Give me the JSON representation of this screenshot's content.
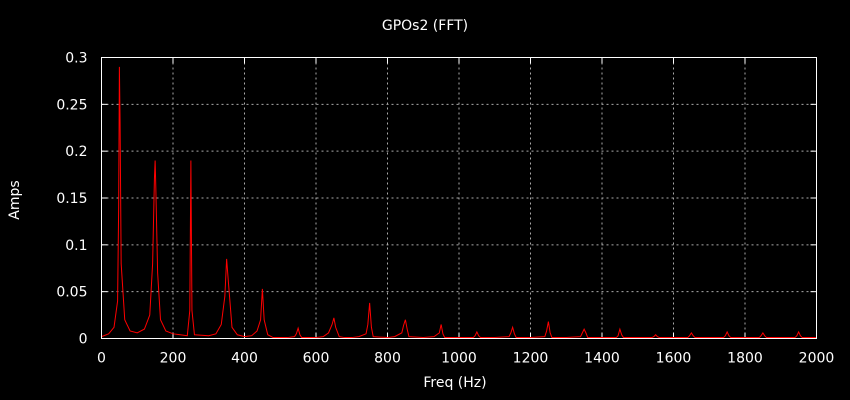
{
  "chart_data": {
    "type": "line",
    "title": "GPOs2 (FFT)",
    "xlabel": "Freq (Hz)",
    "ylabel": "Amps",
    "xlim": [
      0,
      2000
    ],
    "ylim": [
      0,
      0.3
    ],
    "xticks": [
      "0",
      "200",
      "400",
      "600",
      "800",
      "1000",
      "1200",
      "1400",
      "1600",
      "1800",
      "2000"
    ],
    "yticks": [
      "0",
      "0.05",
      "0.1",
      "0.15",
      "0.2",
      "0.25",
      "0.3"
    ],
    "grid": true,
    "series": [
      {
        "color": "#ff0000",
        "x": [
          0,
          20,
          35,
          45,
          48,
          50,
          52,
          55,
          65,
          80,
          100,
          120,
          135,
          143,
          148,
          150,
          152,
          157,
          165,
          180,
          200,
          220,
          240,
          247,
          250,
          253,
          260,
          300,
          320,
          335,
          345,
          350,
          355,
          365,
          380,
          400,
          420,
          435,
          445,
          450,
          455,
          465,
          480,
          500,
          520,
          540,
          545,
          550,
          555,
          560,
          600,
          620,
          635,
          645,
          650,
          655,
          665,
          680,
          700,
          720,
          740,
          745,
          750,
          755,
          760,
          800,
          820,
          840,
          845,
          850,
          855,
          860,
          900,
          930,
          945,
          950,
          955,
          960,
          1000,
          1040,
          1045,
          1050,
          1055,
          1060,
          1100,
          1140,
          1145,
          1150,
          1155,
          1160,
          1200,
          1240,
          1245,
          1250,
          1255,
          1260,
          1300,
          1340,
          1345,
          1350,
          1355,
          1360,
          1400,
          1440,
          1445,
          1450,
          1455,
          1460,
          1500,
          1540,
          1545,
          1550,
          1555,
          1560,
          1600,
          1640,
          1645,
          1650,
          1655,
          1660,
          1700,
          1740,
          1745,
          1750,
          1755,
          1760,
          1800,
          1840,
          1845,
          1850,
          1855,
          1860,
          1900,
          1940,
          1945,
          1950,
          1955,
          1960,
          2000
        ],
        "y": [
          0.002,
          0.005,
          0.012,
          0.04,
          0.14,
          0.29,
          0.23,
          0.08,
          0.02,
          0.008,
          0.006,
          0.01,
          0.025,
          0.08,
          0.17,
          0.19,
          0.16,
          0.07,
          0.02,
          0.008,
          0.005,
          0.004,
          0.003,
          0.03,
          0.19,
          0.03,
          0.004,
          0.003,
          0.005,
          0.015,
          0.045,
          0.085,
          0.06,
          0.012,
          0.004,
          0.002,
          0.003,
          0.008,
          0.02,
          0.053,
          0.02,
          0.004,
          0.001,
          0.001,
          0.001,
          0.002,
          0.005,
          0.011,
          0.004,
          0.001,
          0.001,
          0.002,
          0.006,
          0.015,
          0.022,
          0.012,
          0.002,
          0.001,
          0.001,
          0.002,
          0.005,
          0.015,
          0.038,
          0.012,
          0.002,
          0.001,
          0.002,
          0.006,
          0.014,
          0.02,
          0.01,
          0.002,
          0.001,
          0.002,
          0.006,
          0.015,
          0.005,
          0.001,
          0.001,
          0.001,
          0.003,
          0.007,
          0.003,
          0.001,
          0.001,
          0.002,
          0.006,
          0.012,
          0.005,
          0.001,
          0.001,
          0.002,
          0.008,
          0.018,
          0.006,
          0.001,
          0.001,
          0.002,
          0.006,
          0.01,
          0.006,
          0.001,
          0.001,
          0.001,
          0.003,
          0.01,
          0.004,
          0.001,
          0.001,
          0.001,
          0.002,
          0.004,
          0.002,
          0.001,
          0.001,
          0.001,
          0.003,
          0.006,
          0.003,
          0.001,
          0.001,
          0.001,
          0.003,
          0.007,
          0.003,
          0.001,
          0.001,
          0.001,
          0.003,
          0.006,
          0.003,
          0.001,
          0.001,
          0.001,
          0.003,
          0.007,
          0.003,
          0.001,
          0.001
        ]
      }
    ]
  }
}
